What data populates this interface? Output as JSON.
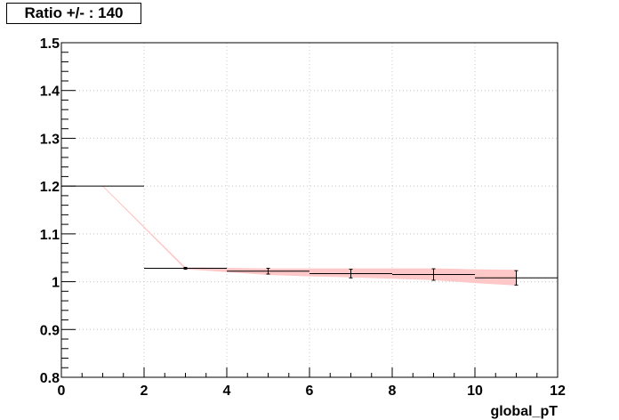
{
  "chart_data": {
    "type": "line",
    "title": "Ratio +/- : 140",
    "xlabel": "global_pT",
    "ylabel": "",
    "xlim": [
      0,
      12
    ],
    "ylim": [
      0.8,
      1.5
    ],
    "xticks": [
      "0",
      "2",
      "4",
      "6",
      "8",
      "10",
      "12"
    ],
    "yticks": [
      "0.8",
      "0.9",
      "1",
      "1.1",
      "1.2",
      "1.3",
      "1.4",
      "1.5"
    ],
    "grid": true,
    "points": [
      {
        "x": 1,
        "y": 1.2,
        "xerr": 1,
        "yerr": 0
      },
      {
        "x": 3,
        "y": 1.028,
        "xerr": 1,
        "yerr": 0.002
      },
      {
        "x": 5,
        "y": 1.022,
        "xerr": 1,
        "yerr": 0.006
      },
      {
        "x": 7,
        "y": 1.017,
        "xerr": 1,
        "yerr": 0.009
      },
      {
        "x": 9,
        "y": 1.015,
        "xerr": 1,
        "yerr": 0.012
      },
      {
        "x": 11,
        "y": 1.008,
        "xerr": 1,
        "yerr": 0.015
      }
    ],
    "band": {
      "x": [
        1,
        3,
        4,
        5,
        6,
        7,
        8,
        9,
        10,
        11
      ],
      "upper": [
        1.2,
        1.029,
        1.028,
        1.027,
        1.027,
        1.027,
        1.027,
        1.027,
        1.025,
        1.024
      ],
      "lower": [
        1.2,
        1.027,
        1.021,
        1.015,
        1.012,
        1.01,
        1.007,
        1.004,
        0.998,
        0.993
      ]
    },
    "colors": {
      "band": "#ffc8c8",
      "markers": "#000000",
      "grid": "#c8c8c8"
    }
  }
}
